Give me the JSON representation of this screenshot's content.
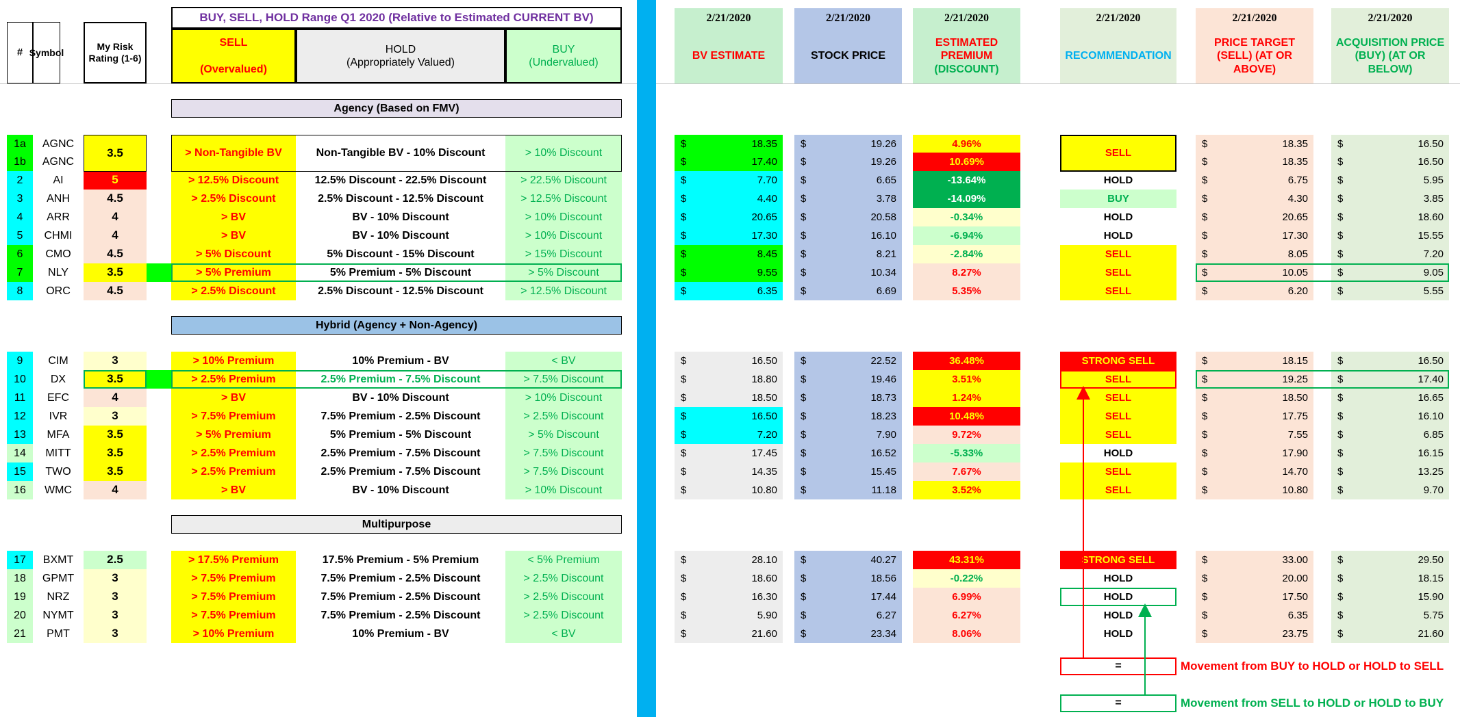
{
  "header": {
    "num": "#",
    "symbol": "Symbol",
    "risk": "My Risk Rating (1-6)",
    "range_title": "BUY, SELL, HOLD Range Q1 2020 (Relative to Estimated CURRENT BV)",
    "sell_l1": "SELL",
    "sell_l2": "(Overvalued)",
    "hold_l1": "HOLD",
    "hold_l2": "(Appropriately Valued)",
    "buy_l1": "BUY",
    "buy_l2": "(Undervalued)",
    "date": "2/21/2020",
    "bv": "BV ESTIMATE",
    "price": "STOCK PRICE",
    "premium_l1": "ESTIMATED PREMIUM",
    "premium_l2": "(DISCOUNT)",
    "rec": "RECOMMENDATION",
    "target_l1": "PRICE TARGET",
    "target_l2": "(SELL) (AT OR",
    "target_l3": "ABOVE)",
    "acq_l1": "ACQUISITION PRICE",
    "acq_l2": "(BUY) (AT OR",
    "acq_l3": "BELOW)"
  },
  "currency": "$",
  "sections": {
    "agency": "Agency (Based on FMV)",
    "hybrid": "Hybrid (Agency + Non-Agency)",
    "multi": "Multipurpose"
  },
  "colors": {
    "yellow": "#ffff00",
    "red": "#ff0000",
    "green": "#00b050",
    "bright_green": "#00ff00",
    "cyan": "#00ffff",
    "light_yellow": "#ffffcc",
    "light_green": "#ccffcc",
    "peach": "#fce4d6",
    "light_gray": "#ededed",
    "blue_gray": "#b4c6e7",
    "lavender": "#e4dfec",
    "blue": "#9bc2e6",
    "accent_blue": "#00b0f0"
  },
  "rows": [
    {
      "num": "1a",
      "sym": "AGNC",
      "risk": "3.5",
      "sell": "> Non-Tangible BV",
      "hold": "Non-Tangible BV - 10% Discount",
      "buy": "> 10% Discount",
      "bv": "18.35",
      "price": "19.26",
      "prem": "4.96%",
      "rec": "SELL",
      "target": "18.35",
      "acq": "16.50"
    },
    {
      "num": "1b",
      "sym": "AGNC",
      "risk": "",
      "sell": "",
      "hold": "",
      "buy": "",
      "bv": "17.40",
      "price": "19.26",
      "prem": "10.69%",
      "rec": "",
      "target": "18.35",
      "acq": "16.50"
    },
    {
      "num": "2",
      "sym": "AI",
      "risk": "5",
      "sell": "> 12.5% Discount",
      "hold": "12.5% Discount - 22.5% Discount",
      "buy": "> 22.5% Discount",
      "bv": "7.70",
      "price": "6.65",
      "prem": "-13.64%",
      "rec": "HOLD",
      "target": "6.75",
      "acq": "5.95"
    },
    {
      "num": "3",
      "sym": "ANH",
      "risk": "4.5",
      "sell": "> 2.5% Discount",
      "hold": "2.5% Discount - 12.5% Discount",
      "buy": "> 12.5% Discount",
      "bv": "4.40",
      "price": "3.78",
      "prem": "-14.09%",
      "rec": "BUY",
      "target": "4.30",
      "acq": "3.85"
    },
    {
      "num": "4",
      "sym": "ARR",
      "risk": "4",
      "sell": "> BV",
      "hold": "BV - 10% Discount",
      "buy": "> 10% Discount",
      "bv": "20.65",
      "price": "20.58",
      "prem": "-0.34%",
      "rec": "HOLD",
      "target": "20.65",
      "acq": "18.60"
    },
    {
      "num": "5",
      "sym": "CHMI",
      "risk": "4",
      "sell": "> BV",
      "hold": "BV - 10% Discount",
      "buy": "> 10% Discount",
      "bv": "17.30",
      "price": "16.10",
      "prem": "-6.94%",
      "rec": "HOLD",
      "target": "17.30",
      "acq": "15.55"
    },
    {
      "num": "6",
      "sym": "CMO",
      "risk": "4.5",
      "sell": "> 5% Discount",
      "hold": "5% Discount - 15% Discount",
      "buy": "> 15% Discount",
      "bv": "8.45",
      "price": "8.21",
      "prem": "-2.84%",
      "rec": "SELL",
      "target": "8.05",
      "acq": "7.20"
    },
    {
      "num": "7",
      "sym": "NLY",
      "risk": "3.5",
      "sell": "> 5% Premium",
      "hold": "5% Premium - 5% Discount",
      "buy": "> 5% Discount",
      "bv": "9.55",
      "price": "10.34",
      "prem": "8.27%",
      "rec": "SELL",
      "target": "10.05",
      "acq": "9.05"
    },
    {
      "num": "8",
      "sym": "ORC",
      "risk": "4.5",
      "sell": "> 2.5% Discount",
      "hold": "2.5% Discount - 12.5% Discount",
      "buy": "> 12.5% Discount",
      "bv": "6.35",
      "price": "6.69",
      "prem": "5.35%",
      "rec": "SELL",
      "target": "6.20",
      "acq": "5.55"
    },
    {
      "num": "9",
      "sym": "CIM",
      "risk": "3",
      "sell": "> 10% Premium",
      "hold": "10% Premium - BV",
      "buy": "< BV",
      "bv": "16.50",
      "price": "22.52",
      "prem": "36.48%",
      "rec": "STRONG SELL",
      "target": "18.15",
      "acq": "16.50"
    },
    {
      "num": "10",
      "sym": "DX",
      "risk": "3.5",
      "sell": "> 2.5% Premium",
      "hold": "2.5% Premium - 7.5% Discount",
      "buy": "> 7.5% Discount",
      "bv": "18.80",
      "price": "19.46",
      "prem": "3.51%",
      "rec": "SELL",
      "target": "19.25",
      "acq": "17.40"
    },
    {
      "num": "11",
      "sym": "EFC",
      "risk": "4",
      "sell": "> BV",
      "hold": "BV - 10% Discount",
      "buy": "> 10% Discount",
      "bv": "18.50",
      "price": "18.73",
      "prem": "1.24%",
      "rec": "SELL",
      "target": "18.50",
      "acq": "16.65"
    },
    {
      "num": "12",
      "sym": "IVR",
      "risk": "3",
      "sell": "> 7.5% Premium",
      "hold": "7.5% Premium - 2.5% Discount",
      "buy": "> 2.5% Discount",
      "bv": "16.50",
      "price": "18.23",
      "prem": "10.48%",
      "rec": "SELL",
      "target": "17.75",
      "acq": "16.10"
    },
    {
      "num": "13",
      "sym": "MFA",
      "risk": "3.5",
      "sell": "> 5% Premium",
      "hold": "5% Premium - 5% Discount",
      "buy": "> 5% Discount",
      "bv": "7.20",
      "price": "7.90",
      "prem": "9.72%",
      "rec": "SELL",
      "target": "7.55",
      "acq": "6.85"
    },
    {
      "num": "14",
      "sym": "MITT",
      "risk": "3.5",
      "sell": "> 2.5% Premium",
      "hold": "2.5% Premium - 7.5% Discount",
      "buy": "> 7.5% Discount",
      "bv": "17.45",
      "price": "16.52",
      "prem": "-5.33%",
      "rec": "HOLD",
      "target": "17.90",
      "acq": "16.15"
    },
    {
      "num": "15",
      "sym": "TWO",
      "risk": "3.5",
      "sell": "> 2.5% Premium",
      "hold": "2.5% Premium - 7.5% Discount",
      "buy": "> 7.5% Discount",
      "bv": "14.35",
      "price": "15.45",
      "prem": "7.67%",
      "rec": "SELL",
      "target": "14.70",
      "acq": "13.25"
    },
    {
      "num": "16",
      "sym": "WMC",
      "risk": "4",
      "sell": "> BV",
      "hold": "BV - 10% Discount",
      "buy": "> 10% Discount",
      "bv": "10.80",
      "price": "11.18",
      "prem": "3.52%",
      "rec": "SELL",
      "target": "10.80",
      "acq": "9.70"
    },
    {
      "num": "17",
      "sym": "BXMT",
      "risk": "2.5",
      "sell": "> 17.5% Premium",
      "hold": "17.5% Premium - 5% Premium",
      "buy": "< 5% Premium",
      "bv": "28.10",
      "price": "40.27",
      "prem": "43.31%",
      "rec": "STRONG SELL",
      "target": "33.00",
      "acq": "29.50"
    },
    {
      "num": "18",
      "sym": "GPMT",
      "risk": "3",
      "sell": "> 7.5% Premium",
      "hold": "7.5% Premium - 2.5% Discount",
      "buy": "> 2.5% Discount",
      "bv": "18.60",
      "price": "18.56",
      "prem": "-0.22%",
      "rec": "HOLD",
      "target": "20.00",
      "acq": "18.15"
    },
    {
      "num": "19",
      "sym": "NRZ",
      "risk": "3",
      "sell": "> 7.5% Premium",
      "hold": "7.5% Premium - 2.5% Discount",
      "buy": "> 2.5% Discount",
      "bv": "16.30",
      "price": "17.44",
      "prem": "6.99%",
      "rec": "HOLD",
      "target": "17.50",
      "acq": "15.90"
    },
    {
      "num": "20",
      "sym": "NYMT",
      "risk": "3",
      "sell": "> 7.5% Premium",
      "hold": "7.5% Premium - 2.5% Discount",
      "buy": "> 2.5% Discount",
      "bv": "5.90",
      "price": "6.27",
      "prem": "6.27%",
      "rec": "HOLD",
      "target": "6.35",
      "acq": "5.75"
    },
    {
      "num": "21",
      "sym": "PMT",
      "risk": "3",
      "sell": "> 10% Premium",
      "hold": "10% Premium - BV",
      "buy": "< BV",
      "bv": "21.60",
      "price": "23.34",
      "prem": "8.06%",
      "rec": "HOLD",
      "target": "23.75",
      "acq": "21.60"
    }
  ],
  "legend": {
    "symbol": "=",
    "red_text": "Movement from BUY to HOLD or HOLD to SELL",
    "green_text": "Movement from SELL to HOLD or HOLD to BUY"
  }
}
